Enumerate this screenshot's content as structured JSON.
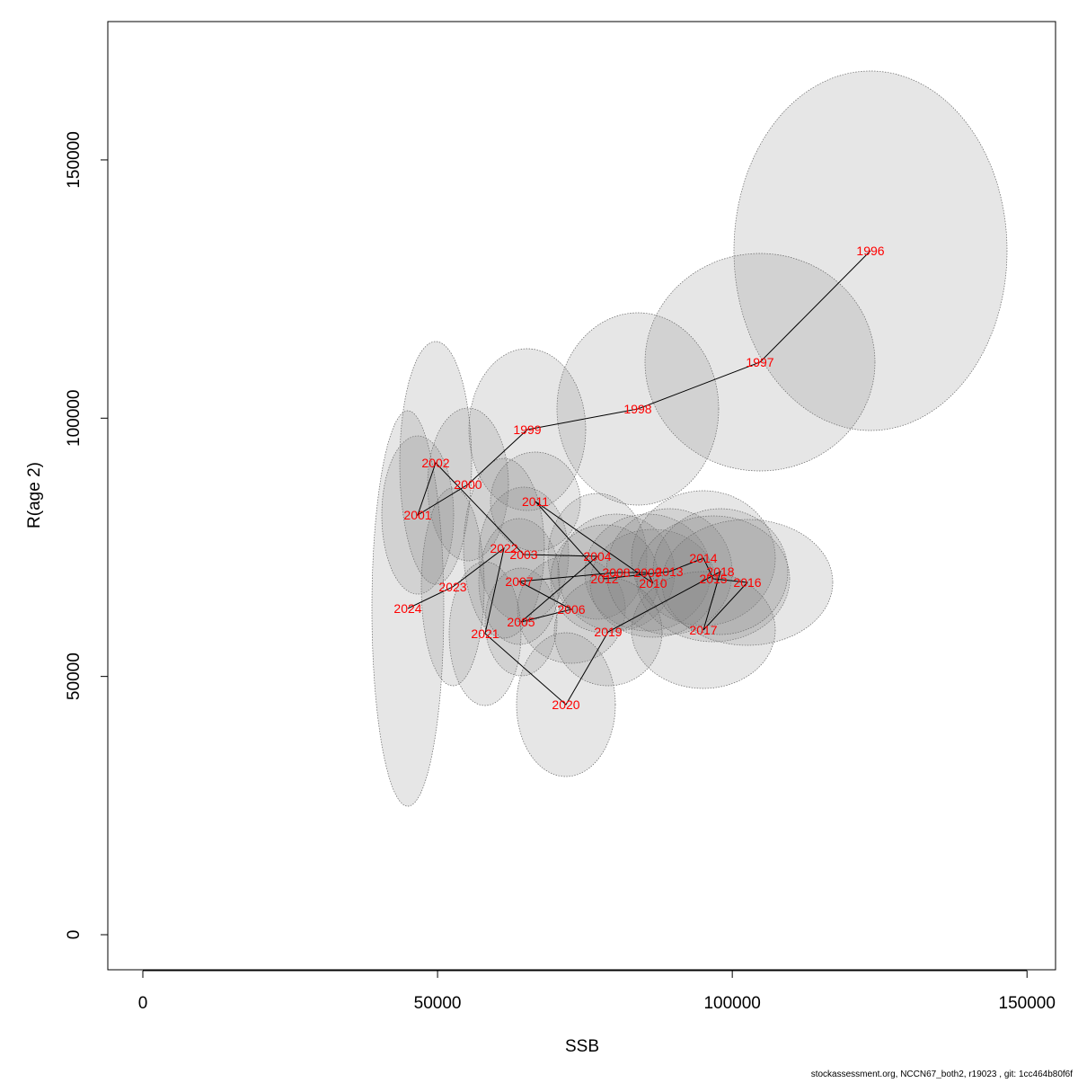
{
  "chart_data": {
    "type": "scatter",
    "x_label": "SSB",
    "y_label": "R(age 2)",
    "footnote": "stockassessment.org, NCCN67_both2, r19023 , git: 1cc464b80f6f",
    "xlim": [
      -5944,
      154840
    ],
    "ylim": [
      -6786,
      176784
    ],
    "xticks": [
      0,
      50000,
      100000,
      150000
    ],
    "yticks": [
      0,
      50000,
      100000,
      150000
    ],
    "labels": [
      "1996",
      "1997",
      "1998",
      "1999",
      "2000",
      "2001",
      "2002",
      "2003",
      "2004",
      "2005",
      "2006",
      "2007",
      "2008",
      "2009",
      "2010",
      "2011",
      "2012",
      "2013",
      "2014",
      "2015",
      "2016",
      "2017",
      "2018",
      "2019",
      "2020",
      "2021",
      "2022",
      "2023",
      "2024"
    ],
    "x": [
      123444,
      104699,
      83972,
      65227,
      55169,
      46634,
      49682,
      64618,
      77114,
      64160,
      72695,
      63856,
      80315,
      85649,
      86563,
      66599,
      78334,
      89306,
      95098,
      96774,
      102565,
      95098,
      97993,
      78943,
      71780,
      58064,
      61265,
      52578,
      44958
    ],
    "values": [
      132414,
      110838,
      101790,
      97788,
      87174,
      81258,
      91350,
      73602,
      73254,
      60552,
      62988,
      68382,
      70122,
      70122,
      68034,
      83868,
      68904,
      70296,
      72906,
      68904,
      68208,
      58986,
      70296,
      58638,
      44544,
      58290,
      74820,
      67338,
      63162
    ],
    "ellipse_x_radius": [
      23165,
      19507,
      13716,
      9906,
      6858,
      6096,
      6096,
      7620,
      8382,
      6096,
      9144,
      6858,
      9906,
      10668,
      10668,
      7620,
      9144,
      10668,
      12192,
      12954,
      14478,
      12192,
      11430,
      9144,
      8382,
      6096,
      6858,
      5334,
      6096
    ],
    "ellipse_y_radius": [
      34800,
      21054,
      18618,
      15660,
      14790,
      15312,
      23490,
      13050,
      12180,
      10440,
      10440,
      12180,
      11310,
      11310,
      10440,
      9570,
      10440,
      12180,
      13050,
      12180,
      12180,
      11310,
      12180,
      10440,
      13920,
      13920,
      17400,
      19140,
      38280
    ],
    "label_color": "#ff0000",
    "line_color": "#000000",
    "ellipse_color": "#808080"
  }
}
